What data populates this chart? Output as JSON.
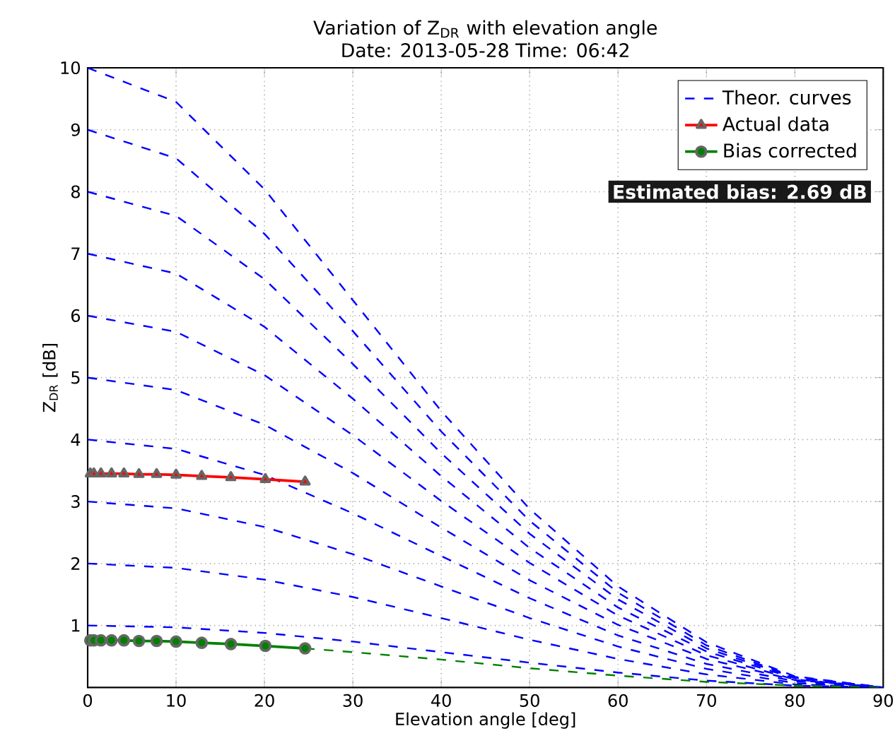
{
  "chart_data": {
    "type": "line",
    "title": "Variation of Z$_{DR}$ with elevation angle",
    "subtitle": "Date: 2013-05-28          Time: 06:42",
    "xlabel": "Elevation angle [deg]",
    "ylabel": "Z$_{DR}$ [dB]",
    "x": [
      0,
      10,
      20,
      30,
      40,
      50,
      60,
      70,
      80,
      90
    ],
    "series": [
      {
        "name": "Theor. curves",
        "color": "#0000ff",
        "line_style": "dashed",
        "values": [
          10,
          9.45,
          8.04,
          6.25,
          4.46,
          2.88,
          1.63,
          0.73,
          0.18,
          0
        ]
      },
      {
        "color": "#0000ff",
        "line_style": "dashed",
        "values": [
          9,
          8.54,
          7.32,
          5.75,
          4.13,
          2.69,
          1.53,
          0.68,
          0.17,
          0
        ]
      },
      {
        "color": "#0000ff",
        "line_style": "dashed",
        "values": [
          8,
          7.61,
          6.59,
          5.22,
          3.78,
          2.48,
          1.42,
          0.63,
          0.16,
          0
        ]
      },
      {
        "color": "#0000ff",
        "line_style": "dashed",
        "values": [
          7,
          6.68,
          5.82,
          4.66,
          3.41,
          2.25,
          1.29,
          0.58,
          0.15,
          0
        ]
      },
      {
        "color": "#0000ff",
        "line_style": "dashed",
        "values": [
          6,
          5.74,
          5.04,
          4.07,
          3.01,
          2.01,
          1.16,
          0.52,
          0.13,
          0
        ]
      },
      {
        "color": "#0000ff",
        "line_style": "dashed",
        "values": [
          5,
          4.8,
          4.24,
          3.46,
          2.58,
          1.73,
          1.01,
          0.46,
          0.12,
          0
        ]
      },
      {
        "color": "#0000ff",
        "line_style": "dashed",
        "values": [
          4,
          3.85,
          3.43,
          2.81,
          2.12,
          1.44,
          0.84,
          0.38,
          0.1,
          0
        ]
      },
      {
        "color": "#0000ff",
        "line_style": "dashed",
        "values": [
          3,
          2.89,
          2.59,
          2.15,
          1.63,
          1.12,
          0.66,
          0.3,
          0.07,
          0
        ]
      },
      {
        "color": "#0000ff",
        "line_style": "dashed",
        "values": [
          2,
          1.93,
          1.74,
          1.46,
          1.12,
          0.77,
          0.46,
          0.21,
          0.05,
          0
        ]
      },
      {
        "color": "#0000ff",
        "line_style": "dashed",
        "values": [
          1,
          0.97,
          0.88,
          0.74,
          0.57,
          0.4,
          0.24,
          0.11,
          0.03,
          0
        ]
      },
      {
        "color": "#008000",
        "line_style": "dashed",
        "x": [
          24.6,
          30,
          40,
          50,
          60,
          70,
          80,
          90
        ],
        "values": [
          0.63,
          0.57,
          0.45,
          0.31,
          0.19,
          0.09,
          0.03,
          0
        ]
      },
      {
        "name": "Actual data",
        "color": "#ff0000",
        "line_style": "solid",
        "marker": "triangle",
        "x": [
          0.3,
          0.7,
          1.5,
          2.7,
          4.1,
          5.8,
          7.8,
          10.0,
          12.9,
          16.2,
          20.1,
          24.6
        ],
        "values": [
          3.45,
          3.45,
          3.45,
          3.45,
          3.45,
          3.44,
          3.44,
          3.43,
          3.41,
          3.39,
          3.36,
          3.32
        ]
      },
      {
        "name": "Bias corrected",
        "color": "#008000",
        "line_style": "solid",
        "marker": "circle",
        "x": [
          0.3,
          0.7,
          1.5,
          2.7,
          4.1,
          5.8,
          7.8,
          10.0,
          12.9,
          16.2,
          20.1,
          24.6
        ],
        "values": [
          0.76,
          0.76,
          0.76,
          0.76,
          0.76,
          0.75,
          0.75,
          0.74,
          0.72,
          0.7,
          0.67,
          0.63
        ]
      }
    ],
    "annotations": [
      "Estimated bias: 2.69 dB"
    ],
    "xlim": [
      0,
      90
    ],
    "ylim": [
      0,
      10
    ],
    "xticks": [
      0,
      10,
      20,
      30,
      40,
      50,
      60,
      70,
      80,
      90
    ],
    "yticks": [
      1,
      2,
      3,
      4,
      5,
      6,
      7,
      8,
      9,
      10
    ],
    "grid": true,
    "legend": "top right"
  }
}
